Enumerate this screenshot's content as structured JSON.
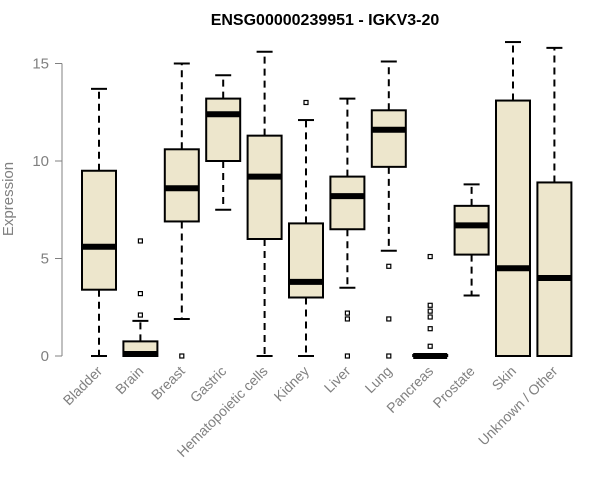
{
  "chart_data": {
    "type": "boxplot",
    "title": "ENSG00000239951 - IGKV3-20",
    "xlabel": "",
    "ylabel": "Expression",
    "ylim": [
      0,
      15.6
    ],
    "yticks": [
      0,
      5,
      10,
      15
    ],
    "categories": [
      "Bladder",
      "Brain",
      "Breast",
      "Gastric",
      "Hematopoietic cells",
      "Kidney",
      "Liver",
      "Lung",
      "Pancreas",
      "Prostate",
      "Skin",
      "Unknown / Other"
    ],
    "boxes": [
      {
        "category": "Bladder",
        "whisker_low": 0,
        "q1": 3.4,
        "median": 5.6,
        "q3": 9.5,
        "whisker_high": 13.7,
        "outliers": []
      },
      {
        "category": "Brain",
        "whisker_low": 0,
        "q1": 0,
        "median": 0.1,
        "q3": 0.75,
        "whisker_high": 1.8,
        "outliers": [
          2.1,
          3.2,
          5.9
        ]
      },
      {
        "category": "Breast",
        "whisker_low": 1.9,
        "q1": 6.9,
        "median": 8.6,
        "q3": 10.6,
        "whisker_high": 15.0,
        "outliers": [
          0
        ]
      },
      {
        "category": "Gastric",
        "whisker_low": 7.5,
        "q1": 10.0,
        "median": 12.4,
        "q3": 13.2,
        "whisker_high": 14.4,
        "outliers": []
      },
      {
        "category": "Hematopoietic cells",
        "whisker_low": 0,
        "q1": 6.0,
        "median": 9.2,
        "q3": 11.3,
        "whisker_high": 15.6,
        "outliers": []
      },
      {
        "category": "Kidney",
        "whisker_low": 0,
        "q1": 3.0,
        "median": 3.8,
        "q3": 6.8,
        "whisker_high": 12.1,
        "outliers": [
          13.0
        ]
      },
      {
        "category": "Liver",
        "whisker_low": 3.5,
        "q1": 6.5,
        "median": 8.2,
        "q3": 9.2,
        "whisker_high": 13.2,
        "outliers": [
          0,
          1.9,
          2.2
        ]
      },
      {
        "category": "Lung",
        "whisker_low": 5.4,
        "q1": 9.7,
        "median": 11.6,
        "q3": 12.6,
        "whisker_high": 15.1,
        "outliers": [
          0,
          1.9,
          4.6
        ]
      },
      {
        "category": "Pancreas",
        "whisker_low": 0,
        "q1": 0,
        "median": 0,
        "q3": 0.05,
        "whisker_high": 0.1,
        "outliers": [
          0.5,
          1.4,
          2.0,
          2.3,
          2.6,
          5.1
        ]
      },
      {
        "category": "Prostate",
        "whisker_low": 3.1,
        "q1": 5.2,
        "median": 6.7,
        "q3": 7.7,
        "whisker_high": 8.8,
        "outliers": []
      },
      {
        "category": "Skin",
        "whisker_low": 0,
        "q1": 0,
        "median": 4.5,
        "q3": 13.1,
        "whisker_high": 16.1,
        "outliers": []
      },
      {
        "category": "Unknown / Other",
        "whisker_low": 0,
        "q1": 0,
        "median": 4.0,
        "q3": 8.9,
        "whisker_high": 15.8,
        "outliers": []
      }
    ],
    "colors": {
      "box_fill": "#ede6cc",
      "box_stroke": "#000000",
      "median": "#000000",
      "axis": "#808080",
      "tick_text": "#808080",
      "title": "#000000"
    },
    "grid": false
  }
}
